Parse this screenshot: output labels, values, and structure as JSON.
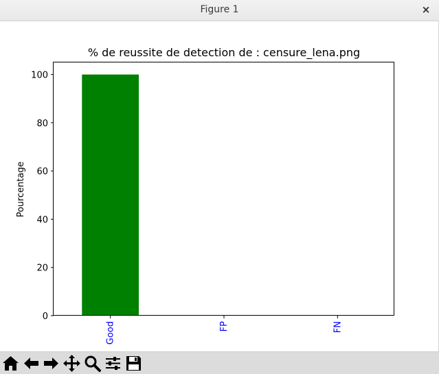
{
  "window": {
    "title": "Figure 1",
    "close_label": "×"
  },
  "toolbar": {
    "buttons": [
      {
        "name": "home",
        "icon": "home-icon"
      },
      {
        "name": "back",
        "icon": "arrow-left-icon"
      },
      {
        "name": "forward",
        "icon": "arrow-right-icon"
      },
      {
        "name": "pan",
        "icon": "move-icon"
      },
      {
        "name": "zoom",
        "icon": "magnifier-icon"
      },
      {
        "name": "configure-subplots",
        "icon": "sliders-icon"
      },
      {
        "name": "save",
        "icon": "floppy-disk-icon"
      }
    ]
  },
  "chart_data": {
    "type": "bar",
    "title": "% de reussite de detection de : censure_lena.png",
    "xlabel": "",
    "ylabel": "Pourcentage",
    "categories": [
      "Good",
      "FP",
      "FN"
    ],
    "values": [
      100,
      0,
      0
    ],
    "bar_colors": [
      "#008000",
      "#008000",
      "#008000"
    ],
    "tick_label_color": "#0000ff",
    "ylim": [
      0,
      105
    ],
    "yticks": [
      0,
      20,
      40,
      60,
      80,
      100
    ],
    "grid": false,
    "legend": "none"
  }
}
